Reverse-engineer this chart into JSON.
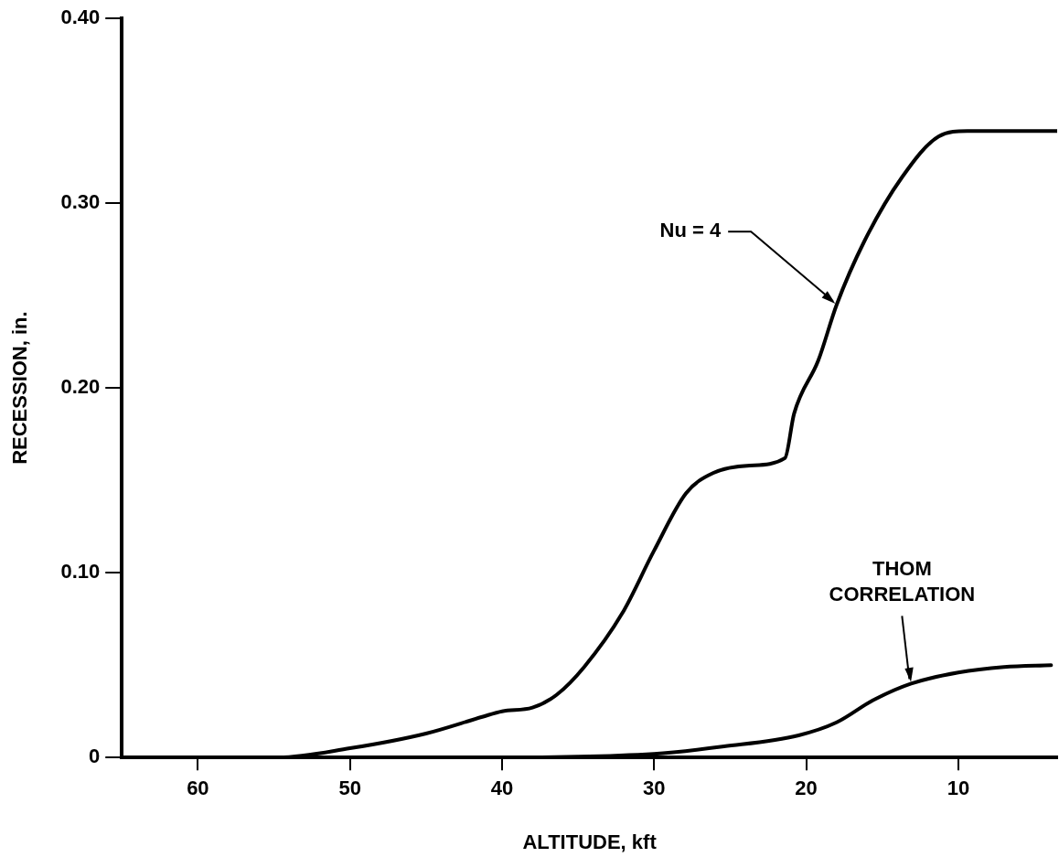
{
  "chart_data": {
    "type": "line",
    "xlabel": "ALTITUDE, kft",
    "ylabel": "RECESSION, in.",
    "xlim": [
      65,
      3.5
    ],
    "xticks": [
      60,
      50,
      40,
      30,
      20,
      10
    ],
    "ylim": [
      0,
      0.4
    ],
    "yticks": [
      0,
      {
        "value": 0.1,
        "label": "0.10"
      },
      {
        "value": 0.2,
        "label": "0.20"
      },
      {
        "value": 0.3,
        "label": "0.30"
      },
      {
        "value": 0.4,
        "label": "0.40"
      }
    ],
    "grid": false,
    "legend": false,
    "marker": "none",
    "line_style": "solid",
    "series": [
      {
        "color": "#000000",
        "x": [
          65,
          54.7,
          50,
          45,
          41.3,
          40,
          38,
          36.4,
          34.6,
          32.1,
          30,
          27.9,
          26.1,
          23.7,
          21.4,
          20.8,
          19.2,
          18,
          16.2,
          13.7,
          11.3,
          9.4,
          3.5
        ],
        "values": [
          0,
          0,
          0.005,
          0.013,
          0.022,
          0.025,
          0.027,
          0.034,
          0.049,
          0.078,
          0.112,
          0.143,
          0.154,
          0.158,
          0.162,
          0.186,
          0.215,
          0.245,
          0.279,
          0.314,
          0.336,
          0.339,
          0.339
        ]
      },
      {
        "color": "#000000",
        "x": [
          65,
          42,
          30,
          25.4,
          20.5,
          18,
          15.6,
          13.1,
          10,
          7,
          3.9
        ],
        "values": [
          0,
          0,
          0.002,
          0.006,
          0.012,
          0.019,
          0.031,
          0.04,
          0.046,
          0.049,
          0.05
        ]
      }
    ],
    "annotations": [
      {
        "text": "Nu = 4",
        "x": 18,
        "y": 0.245
      },
      {
        "text": "THOM\nCORRELATION",
        "x": 13.1,
        "y": 0.04
      }
    ]
  }
}
